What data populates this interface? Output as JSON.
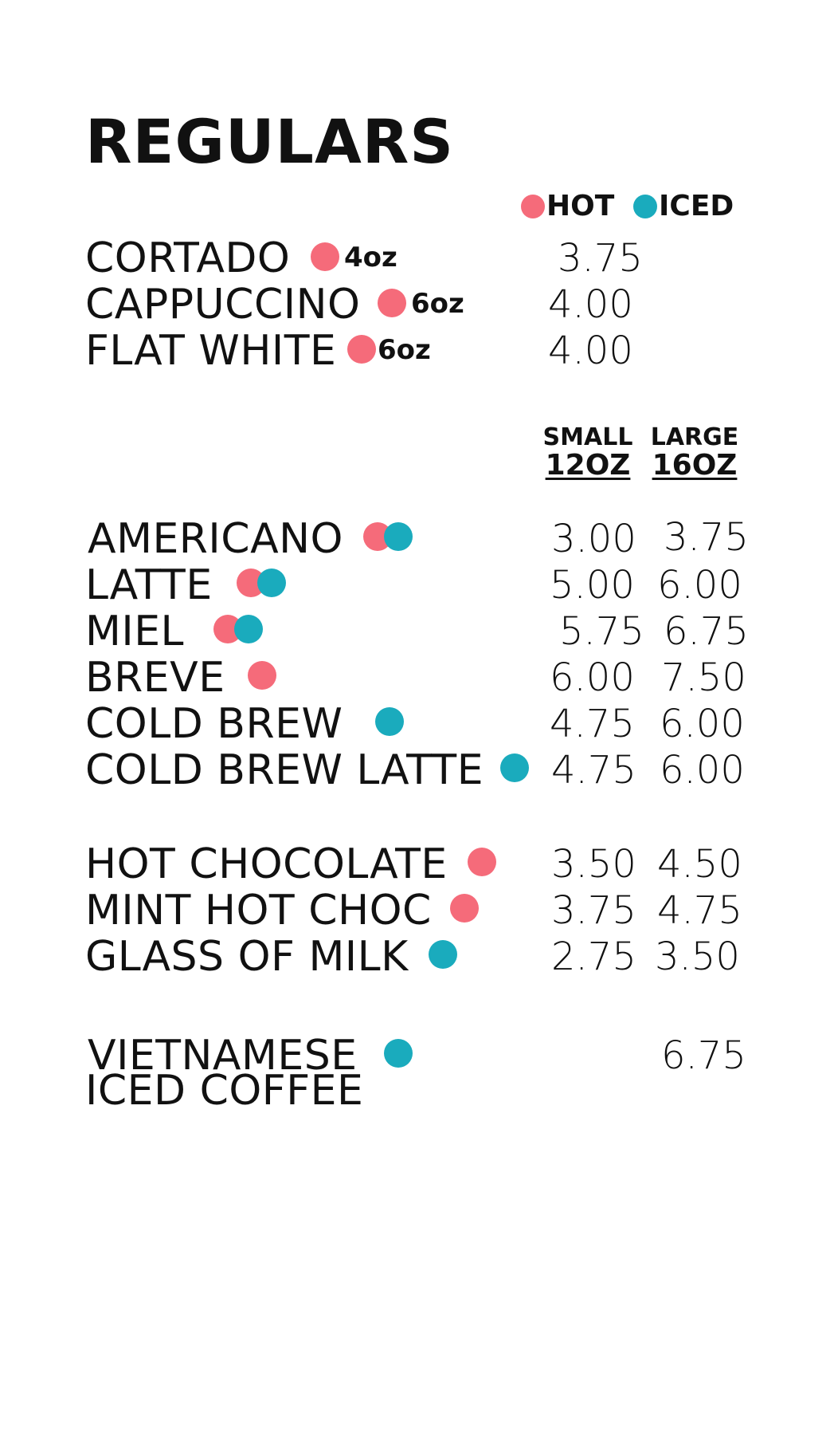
{
  "title": "REGULARS",
  "legend": {
    "hot_label": "HOT",
    "iced_label": "ICED"
  },
  "colors": {
    "hot": "#f56b7a",
    "iced": "#1aabbd"
  },
  "small_items": [
    {
      "name": "CORTADO",
      "size": "4oz",
      "price": "3.75",
      "hot": true
    },
    {
      "name": "CAPPUCCINO",
      "size": "6oz",
      "price": "4.00",
      "hot": true
    },
    {
      "name": "FLAT WHITE",
      "size": "6oz",
      "price": "4.00",
      "hot": true
    }
  ],
  "size_headers": {
    "small": {
      "label": "SMALL",
      "size": "12OZ"
    },
    "large": {
      "label": "LARGE",
      "size": "16OZ"
    }
  },
  "coffee_items": [
    {
      "name": "AMERICANO",
      "small": "3.00",
      "large": "3.75",
      "hot": true,
      "iced": true
    },
    {
      "name": "LATTE",
      "small": "5.00",
      "large": "6.00",
      "hot": true,
      "iced": true
    },
    {
      "name": "MIEL",
      "small": "5.75",
      "large": "6.75",
      "hot": true,
      "iced": true
    },
    {
      "name": "BREVE",
      "small": "6.00",
      "large": "7.50",
      "hot": true,
      "iced": false
    },
    {
      "name": "COLD BREW",
      "small": "4.75",
      "large": "6.00",
      "hot": false,
      "iced": true
    },
    {
      "name": "COLD BREW LATTE",
      "small": "4.75",
      "large": "6.00",
      "hot": false,
      "iced": true
    }
  ],
  "other_items": [
    {
      "name": "HOT CHOCOLATE",
      "small": "3.50",
      "large": "4.50",
      "hot": true,
      "iced": false
    },
    {
      "name": "MINT HOT CHOC",
      "small": "3.75",
      "large": "4.75",
      "hot": true,
      "iced": false
    },
    {
      "name": "GLASS OF MILK",
      "small": "2.75",
      "large": "3.50",
      "hot": false,
      "iced": true
    }
  ],
  "special_item": {
    "name_line1": "VIETNAMESE",
    "name_line2": "ICED COFFEE",
    "price": "6.75",
    "iced": true
  }
}
